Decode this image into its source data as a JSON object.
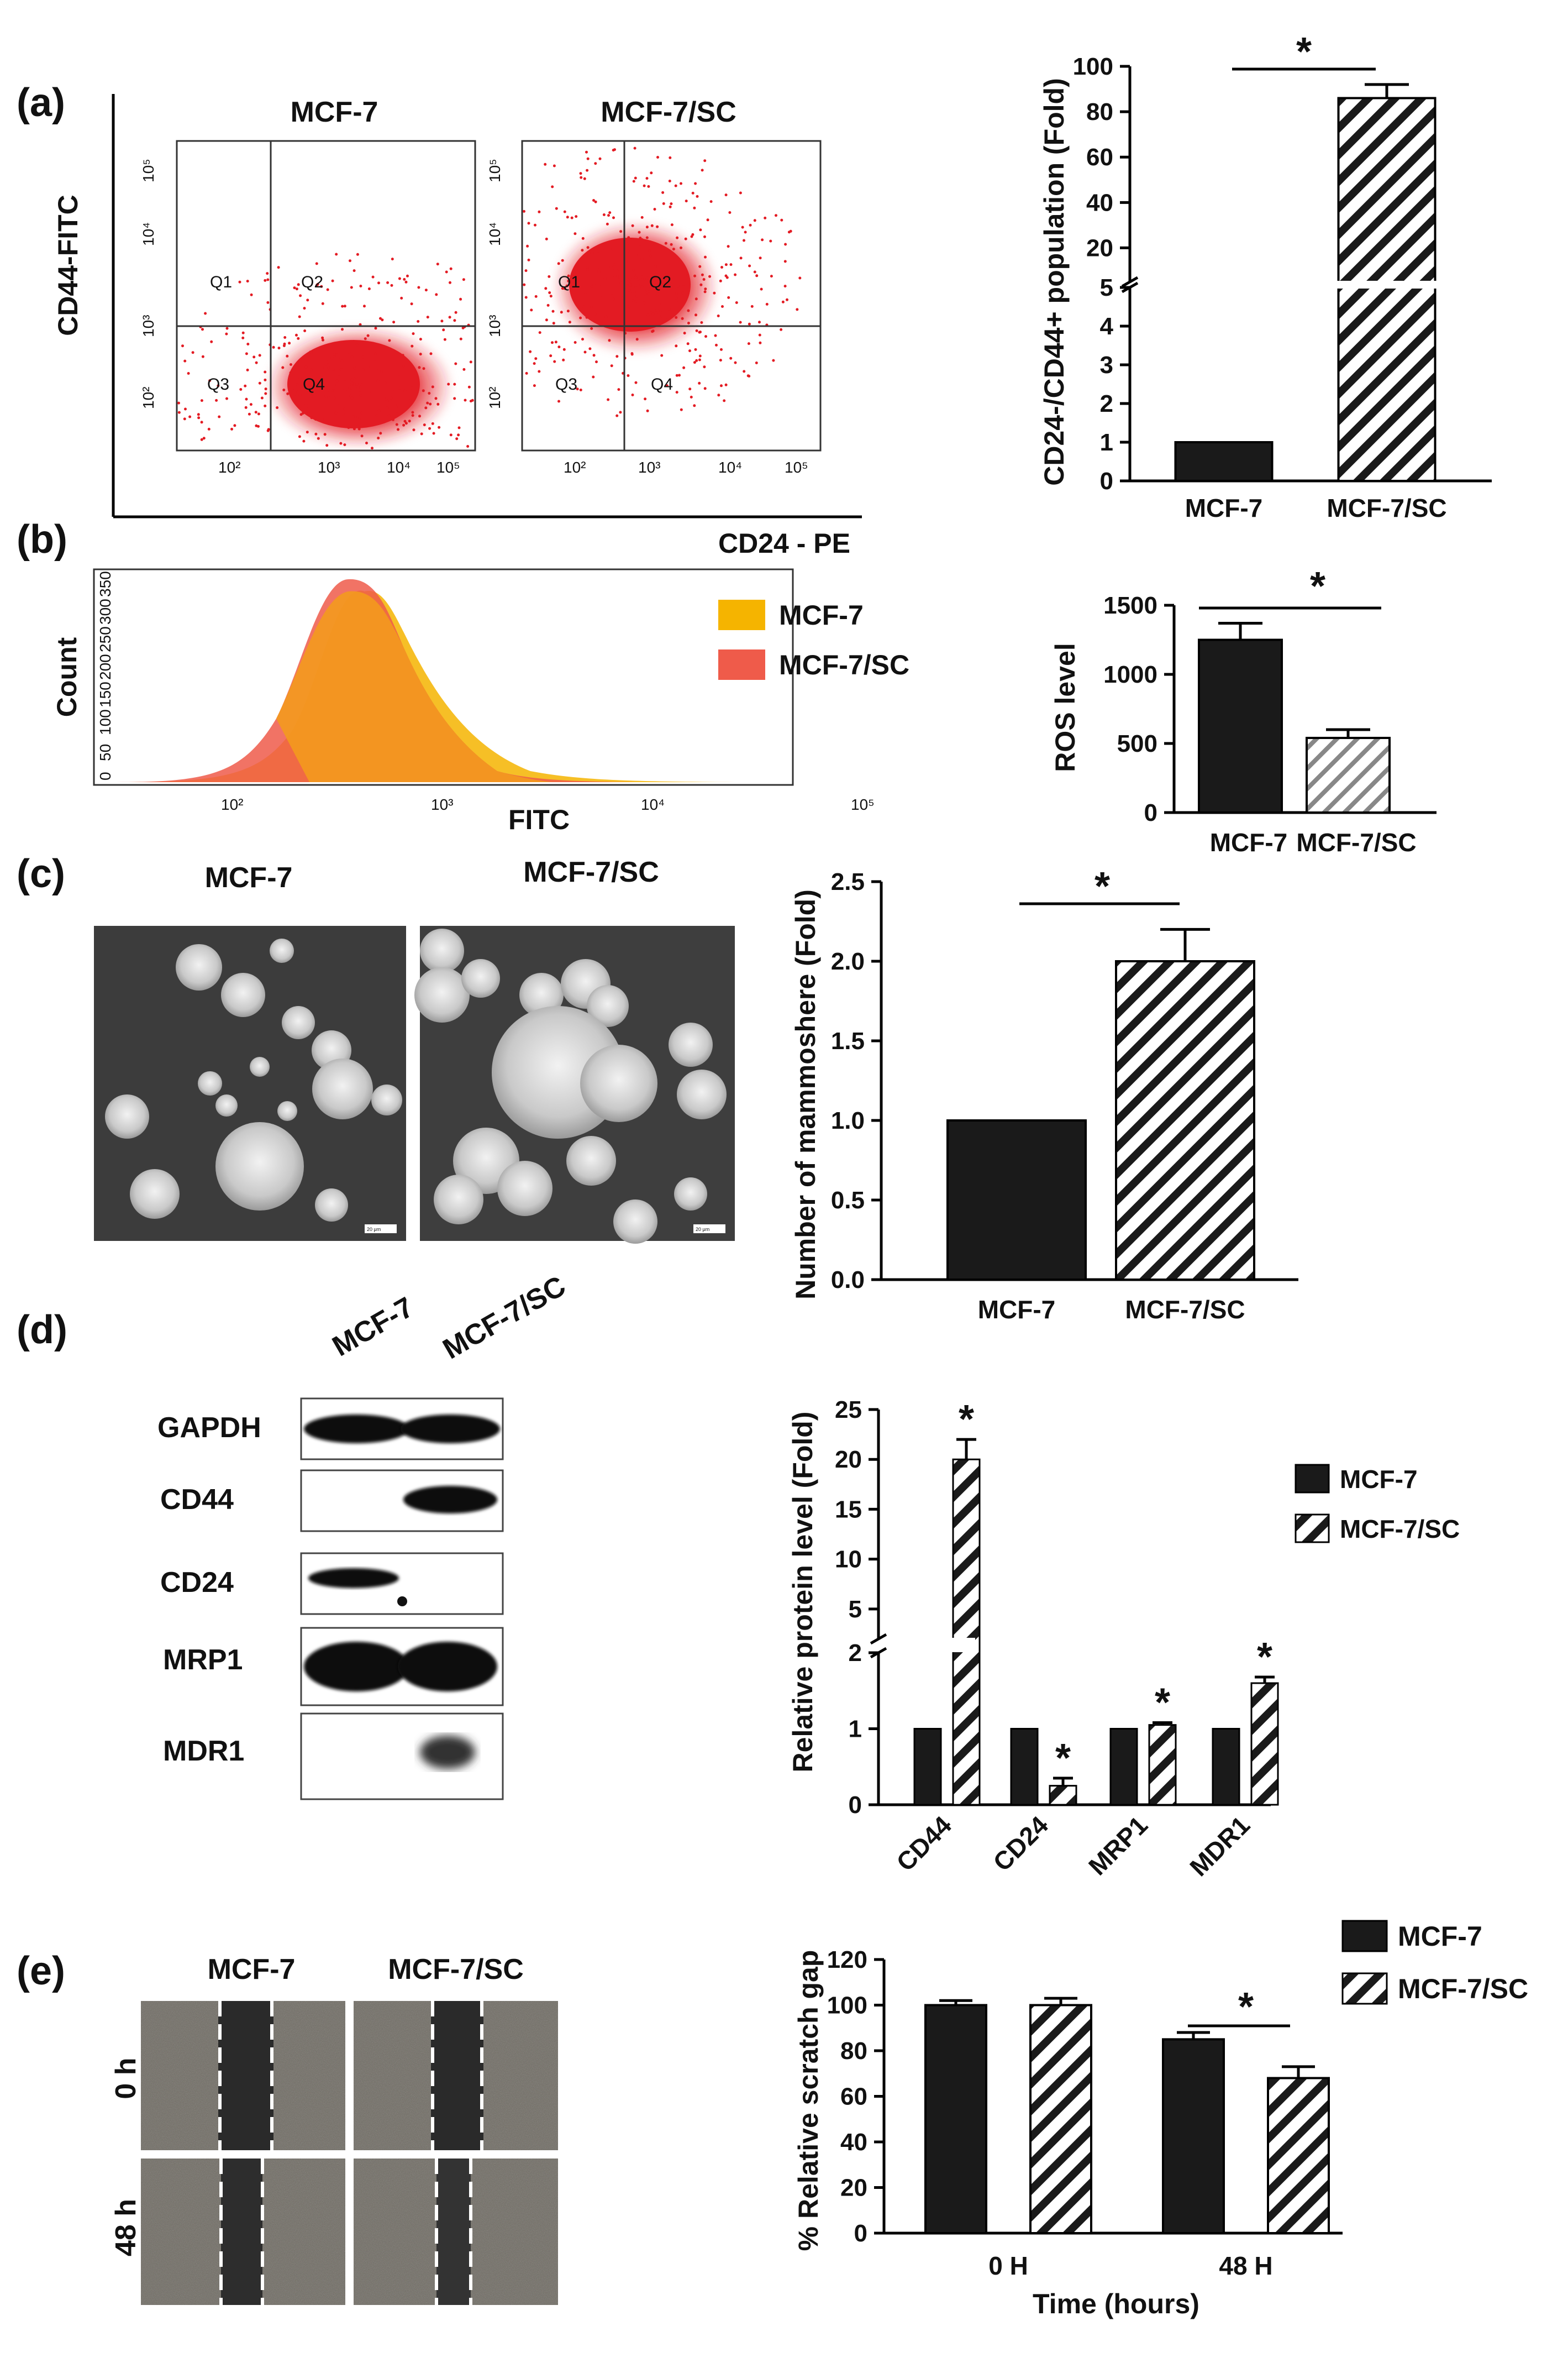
{
  "panels": {
    "a": "(a)",
    "b": "(b)",
    "c": "(c)",
    "d": "(d)",
    "e": "(e)"
  },
  "colors": {
    "black": "#1a1a1a",
    "red": "#e31b23",
    "yellow": "#f5b400",
    "salmon": "#ef5b4a",
    "orange": "#f39a1e"
  },
  "panel_a": {
    "plot_titles": [
      "MCF-7",
      "MCF-7/SC"
    ],
    "y_axis": "CD44-FITC",
    "x_axis": "CD24 - PE",
    "quadrants": [
      "Q1",
      "Q2",
      "Q3",
      "Q4"
    ],
    "tick_labels": [
      "10²",
      "10³",
      "10⁴",
      "10⁵"
    ]
  },
  "panel_b": {
    "y_axis": "Count",
    "x_axis": "FITC",
    "y_ticks": [
      "0",
      "50",
      "100",
      "150",
      "200",
      "250",
      "300",
      "350"
    ],
    "x_ticks": [
      "10²",
      "10³",
      "10⁴",
      "10⁵"
    ],
    "legend": [
      "MCF-7",
      "MCF-7/SC"
    ]
  },
  "panel_c": {
    "image_titles": [
      "MCF-7",
      "MCF-7/SC"
    ],
    "scale_bar": "20 μm"
  },
  "panel_d": {
    "lanes": [
      "MCF-7",
      "MCF-7/SC"
    ],
    "proteins": [
      "GAPDH",
      "CD44",
      "CD24",
      "MRP1",
      "MDR1"
    ]
  },
  "panel_e": {
    "cols": [
      "MCF-7",
      "MCF-7/SC"
    ],
    "rows": [
      "0 h",
      "48 h"
    ]
  },
  "significance": "*",
  "chart_data": [
    {
      "id": "a_bar",
      "type": "bar",
      "categories": [
        "MCF-7",
        "MCF-7/SC"
      ],
      "values": [
        1,
        86
      ],
      "errors": [
        0,
        6
      ],
      "ylabel": "CD24-/CD44+ population (Fold)",
      "axis_break": {
        "lower": [
          0,
          5
        ],
        "upper": [
          5,
          100
        ]
      },
      "y_ticks_lower": [
        "0",
        "1",
        "2",
        "3",
        "4",
        "5"
      ],
      "y_ticks_upper": [
        "20",
        "40",
        "60",
        "80",
        "100"
      ]
    },
    {
      "id": "b_bar",
      "type": "bar",
      "categories": [
        "MCF-7",
        "MCF-7/SC"
      ],
      "values": [
        1250,
        540
      ],
      "errors": [
        120,
        60
      ],
      "ylabel": "ROS level",
      "ylim": [
        0,
        1500
      ],
      "y_ticks": [
        "0",
        "500",
        "1000",
        "1500"
      ]
    },
    {
      "id": "c_bar",
      "type": "bar",
      "categories": [
        "MCF-7",
        "MCF-7/SC"
      ],
      "values": [
        1.0,
        2.0
      ],
      "errors": [
        0,
        0.2
      ],
      "ylabel": "Number of mammoshere (Fold)",
      "ylim": [
        0,
        2.5
      ],
      "y_ticks": [
        "0.0",
        "0.5",
        "1.0",
        "1.5",
        "2.0",
        "2.5"
      ]
    },
    {
      "id": "d_bar",
      "type": "bar",
      "categories": [
        "CD44",
        "CD24",
        "MRP1",
        "MDR1"
      ],
      "series": [
        {
          "name": "MCF-7",
          "values": [
            1,
            1,
            1,
            1
          ],
          "errors": [
            0,
            0,
            0,
            0
          ]
        },
        {
          "name": "MCF-7/SC",
          "values": [
            20,
            0.25,
            1.05,
            1.6
          ],
          "errors": [
            2,
            0.1,
            0.03,
            0.08
          ]
        }
      ],
      "ylabel": "Relative protein level (Fold)",
      "axis_break": {
        "lower": [
          0,
          2
        ],
        "upper": [
          2,
          25
        ]
      },
      "y_ticks_lower": [
        "0",
        "1",
        "2"
      ],
      "y_ticks_upper": [
        "5",
        "10",
        "15",
        "20",
        "25"
      ]
    },
    {
      "id": "e_bar",
      "type": "bar",
      "categories": [
        "0 H",
        "48 H"
      ],
      "series": [
        {
          "name": "MCF-7",
          "values": [
            100,
            85
          ],
          "errors": [
            2,
            3
          ]
        },
        {
          "name": "MCF-7/SC",
          "values": [
            100,
            68
          ],
          "errors": [
            3,
            5
          ]
        }
      ],
      "xlabel": "Time (hours)",
      "ylabel": "% Relative scratch gap",
      "ylim": [
        0,
        120
      ],
      "y_ticks": [
        "0",
        "20",
        "40",
        "60",
        "80",
        "100",
        "120"
      ]
    }
  ]
}
